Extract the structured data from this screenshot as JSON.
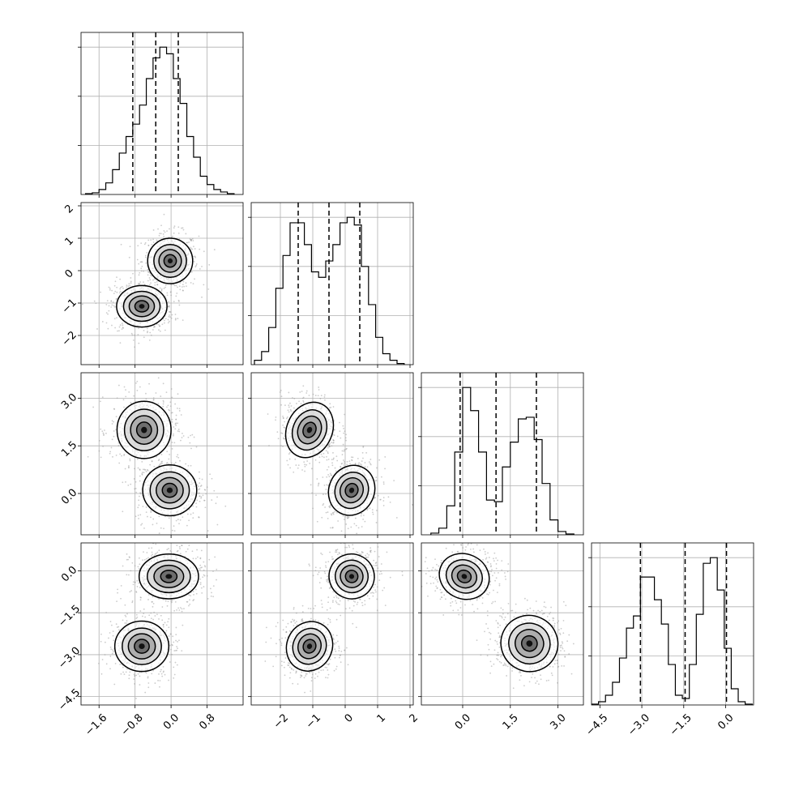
{
  "chart_data": {
    "type": "corner",
    "title": "",
    "parameters": [
      {
        "name": "",
        "range": [
          -2.0,
          1.6
        ],
        "ticks": [
          -1.6,
          -0.8,
          0.0,
          0.8
        ],
        "tick_labels": [
          "−1.6",
          "−0.8",
          "0.0",
          "0.8"
        ],
        "hist_bins": [
          -1.9,
          -1.75,
          -1.6,
          -1.45,
          -1.3,
          -1.15,
          -1.0,
          -0.85,
          -0.7,
          -0.55,
          -0.4,
          -0.25,
          -0.1,
          0.05,
          0.2,
          0.35,
          0.5,
          0.65,
          0.8,
          0.95,
          1.1,
          1.25,
          1.4
        ],
        "hist_counts": [
          1,
          2,
          6,
          14,
          30,
          50,
          70,
          85,
          108,
          140,
          165,
          178,
          170,
          140,
          110,
          70,
          45,
          22,
          12,
          6,
          3,
          1
        ],
        "quantiles": [
          -0.85,
          -0.34,
          0.16
        ]
      },
      {
        "name": "",
        "range": [
          -2.9,
          2.1
        ],
        "ticks": [
          -2,
          -1,
          0,
          1,
          2
        ],
        "tick_labels": [
          "−2",
          "−1",
          "0",
          "1",
          "2"
        ],
        "hist_bins": [
          -2.8,
          -2.58,
          -2.36,
          -2.14,
          -1.92,
          -1.7,
          -1.48,
          -1.26,
          -1.04,
          -0.82,
          -0.6,
          -0.38,
          -0.16,
          0.06,
          0.28,
          0.5,
          0.72,
          0.94,
          1.16,
          1.38,
          1.6,
          1.82
        ],
        "hist_counts": [
          4,
          12,
          34,
          70,
          100,
          130,
          130,
          110,
          85,
          80,
          95,
          110,
          130,
          135,
          128,
          90,
          55,
          25,
          10,
          4,
          1
        ],
        "quantiles": [
          -1.45,
          -0.5,
          0.45
        ]
      },
      {
        "name": "",
        "range": [
          -1.3,
          3.8
        ],
        "ticks": [
          0.0,
          1.5,
          3.0
        ],
        "tick_labels": [
          "0.0",
          "1.5",
          "3.0"
        ],
        "hist_bins": [
          -1.0,
          -0.75,
          -0.5,
          -0.25,
          0.0,
          0.25,
          0.5,
          0.75,
          1.0,
          1.25,
          1.5,
          1.75,
          2.0,
          2.25,
          2.5,
          2.75,
          3.0,
          3.25,
          3.5
        ],
        "hist_counts": [
          2,
          8,
          35,
          100,
          178,
          150,
          100,
          42,
          40,
          82,
          112,
          140,
          142,
          115,
          62,
          18,
          4,
          1
        ],
        "quantiles": [
          -0.08,
          1.05,
          2.32
        ]
      },
      {
        "name": "",
        "range": [
          -4.8,
          1.0
        ],
        "ticks": [
          -4.5,
          -3.0,
          -1.5,
          0.0
        ],
        "tick_labels": [
          "−4.5",
          "−3.0",
          "−1.5",
          "0.0"
        ],
        "hist_bins": [
          -4.8,
          -4.55,
          -4.3,
          -4.05,
          -3.8,
          -3.55,
          -3.3,
          -3.05,
          -2.8,
          -2.55,
          -2.3,
          -2.05,
          -1.8,
          -1.55,
          -1.3,
          -1.05,
          -0.8,
          -0.55,
          -0.3,
          -0.05,
          0.2,
          0.45,
          0.7,
          0.95
        ],
        "hist_counts": [
          1,
          4,
          12,
          28,
          58,
          95,
          110,
          158,
          158,
          130,
          100,
          50,
          12,
          8,
          50,
          112,
          175,
          182,
          142,
          70,
          20,
          4,
          1
        ],
        "quantiles": [
          -3.05,
          -1.45,
          0.03
        ]
      }
    ],
    "pairs": [
      {
        "row": 1,
        "col": 0,
        "modes": [
          [
            -0.02,
            0.3,
            0.25,
            0.35
          ],
          [
            -0.65,
            -1.1,
            0.28,
            0.32
          ]
        ]
      },
      {
        "row": 2,
        "col": 0,
        "modes": [
          [
            -0.6,
            2.0,
            0.3,
            0.45
          ],
          [
            -0.03,
            0.1,
            0.3,
            0.4
          ]
        ]
      },
      {
        "row": 2,
        "col": 1,
        "modes": [
          [
            -1.1,
            2.0,
            0.35,
            0.45
          ],
          [
            0.2,
            0.1,
            0.35,
            0.4
          ]
        ]
      },
      {
        "row": 3,
        "col": 0,
        "modes": [
          [
            -0.05,
            -0.2,
            0.33,
            0.4
          ],
          [
            -0.65,
            -2.7,
            0.3,
            0.45
          ]
        ]
      },
      {
        "row": 3,
        "col": 1,
        "modes": [
          [
            0.2,
            -0.2,
            0.35,
            0.4
          ],
          [
            -1.1,
            -2.7,
            0.35,
            0.45
          ]
        ]
      },
      {
        "row": 3,
        "col": 2,
        "modes": [
          [
            0.05,
            -0.2,
            0.4,
            0.4
          ],
          [
            2.1,
            -2.6,
            0.45,
            0.5
          ]
        ]
      }
    ],
    "histogram_color": "#000000",
    "scatter_color": "#9a9a9a",
    "contour_color": "#000000",
    "grid": true
  }
}
